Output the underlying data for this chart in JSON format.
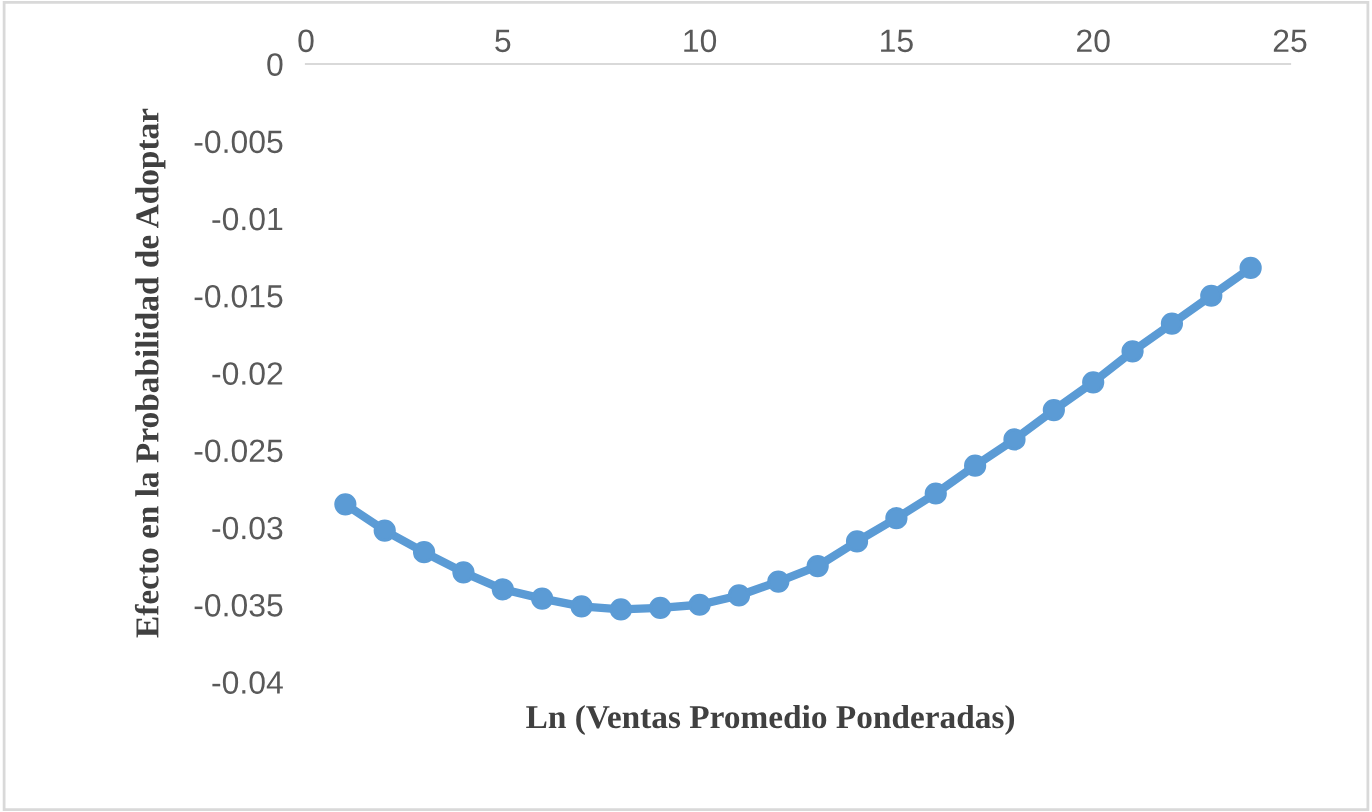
{
  "chart_data": {
    "type": "line",
    "xlabel": "Ln (Ventas Promedio Ponderadas)",
    "ylabel": "Efecto en la Probabilidad de Adoptar",
    "x": [
      1,
      2,
      3,
      4,
      5,
      6,
      7,
      8,
      9,
      10,
      11,
      12,
      13,
      14,
      15,
      16,
      17,
      18,
      19,
      20,
      21,
      22,
      23,
      24
    ],
    "series": [
      {
        "color": "#5b9bd5",
        "values": [
          -0.0285,
          -0.0302,
          -0.0316,
          -0.0329,
          -0.034,
          -0.0346,
          -0.0351,
          -0.0353,
          -0.0352,
          -0.035,
          -0.0344,
          -0.0335,
          -0.0325,
          -0.0309,
          -0.0294,
          -0.0278,
          -0.026,
          -0.0243,
          -0.0224,
          -0.0206,
          -0.0186,
          -0.0168,
          -0.015,
          -0.0132
        ]
      }
    ],
    "xlim": [
      0,
      25
    ],
    "xticks": [
      0,
      5,
      10,
      15,
      20,
      25
    ],
    "ylim": [
      -0.04,
      0
    ],
    "yticks": [
      -0.04,
      -0.035,
      -0.03,
      -0.025,
      -0.02,
      -0.015,
      -0.01,
      -0.005,
      0
    ],
    "marker": "circle",
    "line_style": "solid",
    "grid": false,
    "legend": false
  }
}
